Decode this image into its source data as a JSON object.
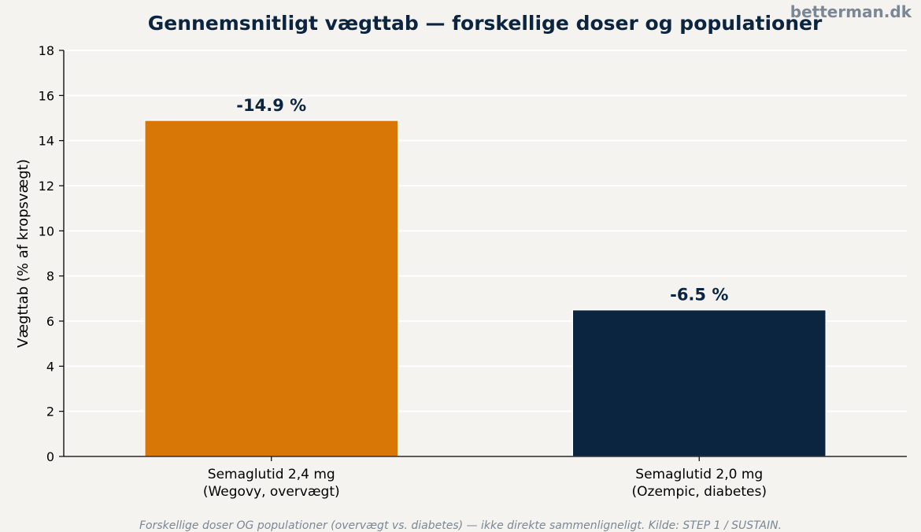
{
  "watermark": "betterman.dk",
  "footnote": "Forskellige doser OG populationer (overvægt vs. diabetes) — ikke direkte sammenligneligt. Kilde: STEP 1 / SUSTAIN.",
  "colors": {
    "background": "#f4f3f0",
    "title": "#0b2541",
    "watermark": "#7b8794",
    "grid": "#ffffff"
  },
  "chart_data": {
    "type": "bar",
    "title": "Gennemsnitligt vægttab — forskellige doser og populationer",
    "xlabel": "",
    "ylabel": "Vægttab (% af kropsvægt)",
    "ylim": [
      0,
      18
    ],
    "yticks": [
      0,
      2,
      4,
      6,
      8,
      10,
      12,
      14,
      16,
      18
    ],
    "grid": true,
    "categories": [
      [
        "Semaglutid 2,4 mg",
        "(Wegovy, overvægt)"
      ],
      [
        "Semaglutid 2,0 mg",
        "(Ozempic, diabetes)"
      ]
    ],
    "values": [
      14.9,
      6.5
    ],
    "data_labels": [
      "-14.9 %",
      "-6.5 %"
    ],
    "bar_colors": [
      "#d97706",
      "#0b2541"
    ]
  }
}
